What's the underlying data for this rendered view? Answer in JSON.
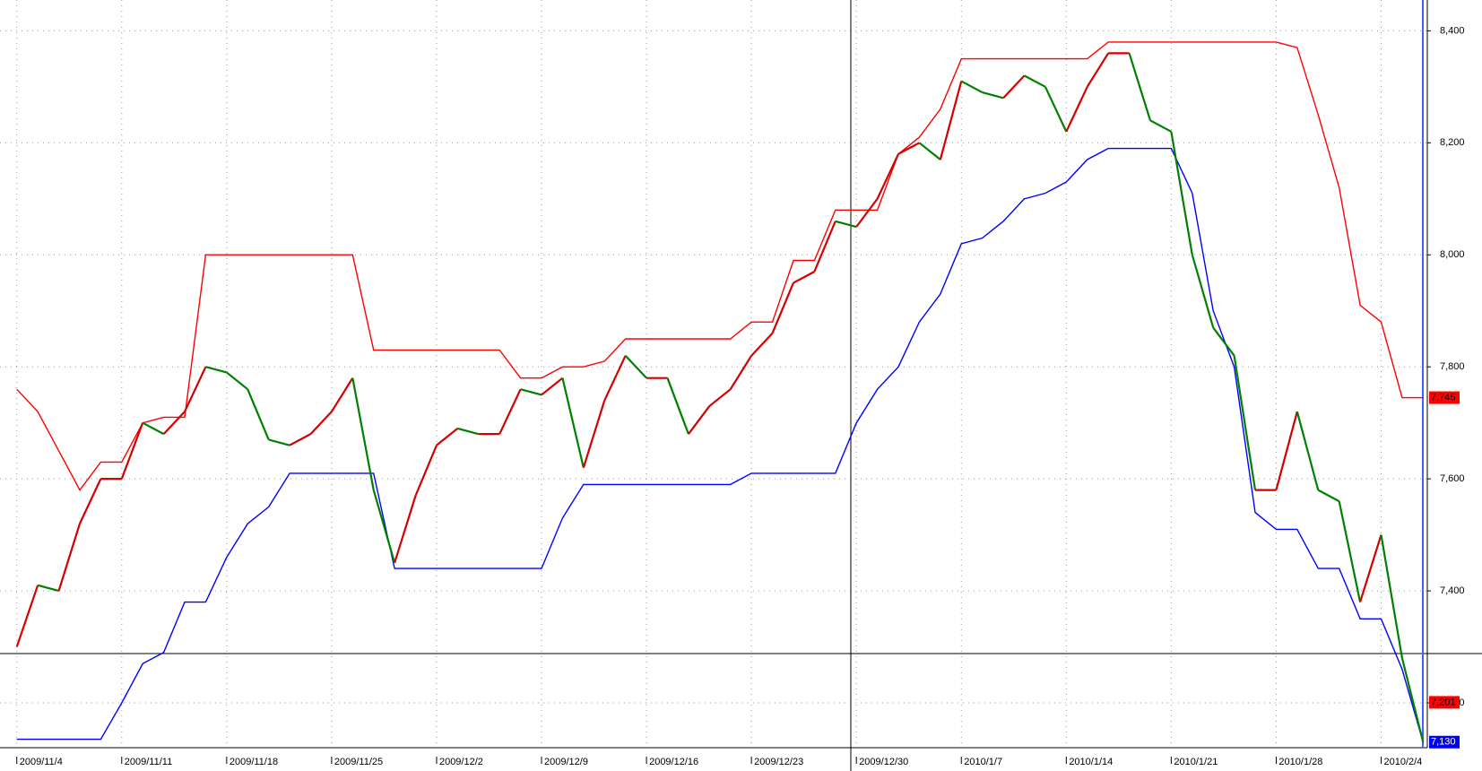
{
  "chart_data": {
    "type": "line",
    "xlim": [
      -0.8,
      67.2
    ],
    "ylim": [
      7120,
      8455
    ],
    "xticks": [
      {
        "value": 0,
        "label": "2009/11/4"
      },
      {
        "value": 5,
        "label": "2009/11/11"
      },
      {
        "value": 10,
        "label": "2009/11/18"
      },
      {
        "value": 15,
        "label": "2009/11/25"
      },
      {
        "value": 20,
        "label": "2009/12/2"
      },
      {
        "value": 25,
        "label": "2009/12/9"
      },
      {
        "value": 30,
        "label": "2009/12/16"
      },
      {
        "value": 35,
        "label": "2009/12/23"
      },
      {
        "value": 40,
        "label": "2009/12/30"
      },
      {
        "value": 45,
        "label": "2010/1/7"
      },
      {
        "value": 50,
        "label": "2010/1/14"
      },
      {
        "value": 55,
        "label": "2010/1/21"
      },
      {
        "value": 60,
        "label": "2010/1/28"
      },
      {
        "value": 65,
        "label": "2010/2/4"
      }
    ],
    "yticks": [
      {
        "value": 7200,
        "label": "7,200"
      },
      {
        "value": 7400,
        "label": "7,400"
      },
      {
        "value": 7600,
        "label": "7,600"
      },
      {
        "value": 7800,
        "label": "7,800"
      },
      {
        "value": 8000,
        "label": "8,000"
      },
      {
        "value": 8200,
        "label": "8,200"
      },
      {
        "value": 8400,
        "label": "8,400"
      }
    ],
    "grid": true,
    "series": [
      {
        "color": "#ff0000",
        "values": [
          7760,
          7720,
          7650,
          7580,
          7630,
          7630,
          7700,
          7710,
          7710,
          8000,
          8000,
          8000,
          8000,
          8000,
          8000,
          8000,
          8000,
          7830,
          7830,
          7830,
          7830,
          7830,
          7830,
          7830,
          7780,
          7780,
          7800,
          7800,
          7810,
          7850,
          7850,
          7850,
          7850,
          7850,
          7850,
          7880,
          7880,
          7990,
          7990,
          8080,
          8080,
          8080,
          8180,
          8210,
          8260,
          8350,
          8350,
          8350,
          8350,
          8350,
          8350,
          8350,
          8380,
          8380,
          8380,
          8380,
          8380,
          8380,
          8380,
          8380,
          8380,
          8370,
          8250,
          8120,
          7910,
          7880,
          7745,
          7745
        ]
      },
      {
        "color": "#0000ff",
        "values": [
          7135,
          7135,
          7135,
          7135,
          7135,
          7200,
          7270,
          7290,
          7380,
          7380,
          7460,
          7520,
          7550,
          7610,
          7610,
          7610,
          7610,
          7610,
          7440,
          7440,
          7440,
          7440,
          7440,
          7440,
          7440,
          7440,
          7530,
          7590,
          7590,
          7590,
          7590,
          7590,
          7590,
          7590,
          7590,
          7610,
          7610,
          7610,
          7610,
          7610,
          7700,
          7760,
          7800,
          7880,
          7930,
          8020,
          8030,
          8060,
          8100,
          8110,
          8130,
          8170,
          8190,
          8190,
          8190,
          8190,
          8110,
          7900,
          7800,
          7540,
          7510,
          7510,
          7440,
          7440,
          7350,
          7350,
          7260,
          7130
        ]
      },
      {
        "color": "#d40000",
        "down_color": "#008000",
        "values": [
          7300,
          7410,
          7400,
          7520,
          7600,
          7600,
          7700,
          7680,
          7720,
          7800,
          7790,
          7760,
          7670,
          7660,
          7680,
          7720,
          7780,
          7580,
          7450,
          7570,
          7660,
          7690,
          7680,
          7680,
          7760,
          7750,
          7780,
          7620,
          7740,
          7820,
          7780,
          7780,
          7680,
          7730,
          7760,
          7820,
          7860,
          7950,
          7970,
          8060,
          8050,
          8100,
          8180,
          8200,
          8170,
          8310,
          8290,
          8280,
          8320,
          8300,
          8220,
          8300,
          8360,
          8360,
          8240,
          8220,
          8000,
          7870,
          7820,
          7580,
          7580,
          7720,
          7580,
          7560,
          7380,
          7500,
          7280,
          7130
        ]
      }
    ],
    "price_markers": [
      {
        "value": 7745,
        "label": "7,745",
        "color": "#ff0000"
      },
      {
        "value": 7201,
        "label": "7,201",
        "color": "#ff0000"
      },
      {
        "value": 7130,
        "label": "7,130",
        "color": "#0000ff"
      }
    ]
  }
}
